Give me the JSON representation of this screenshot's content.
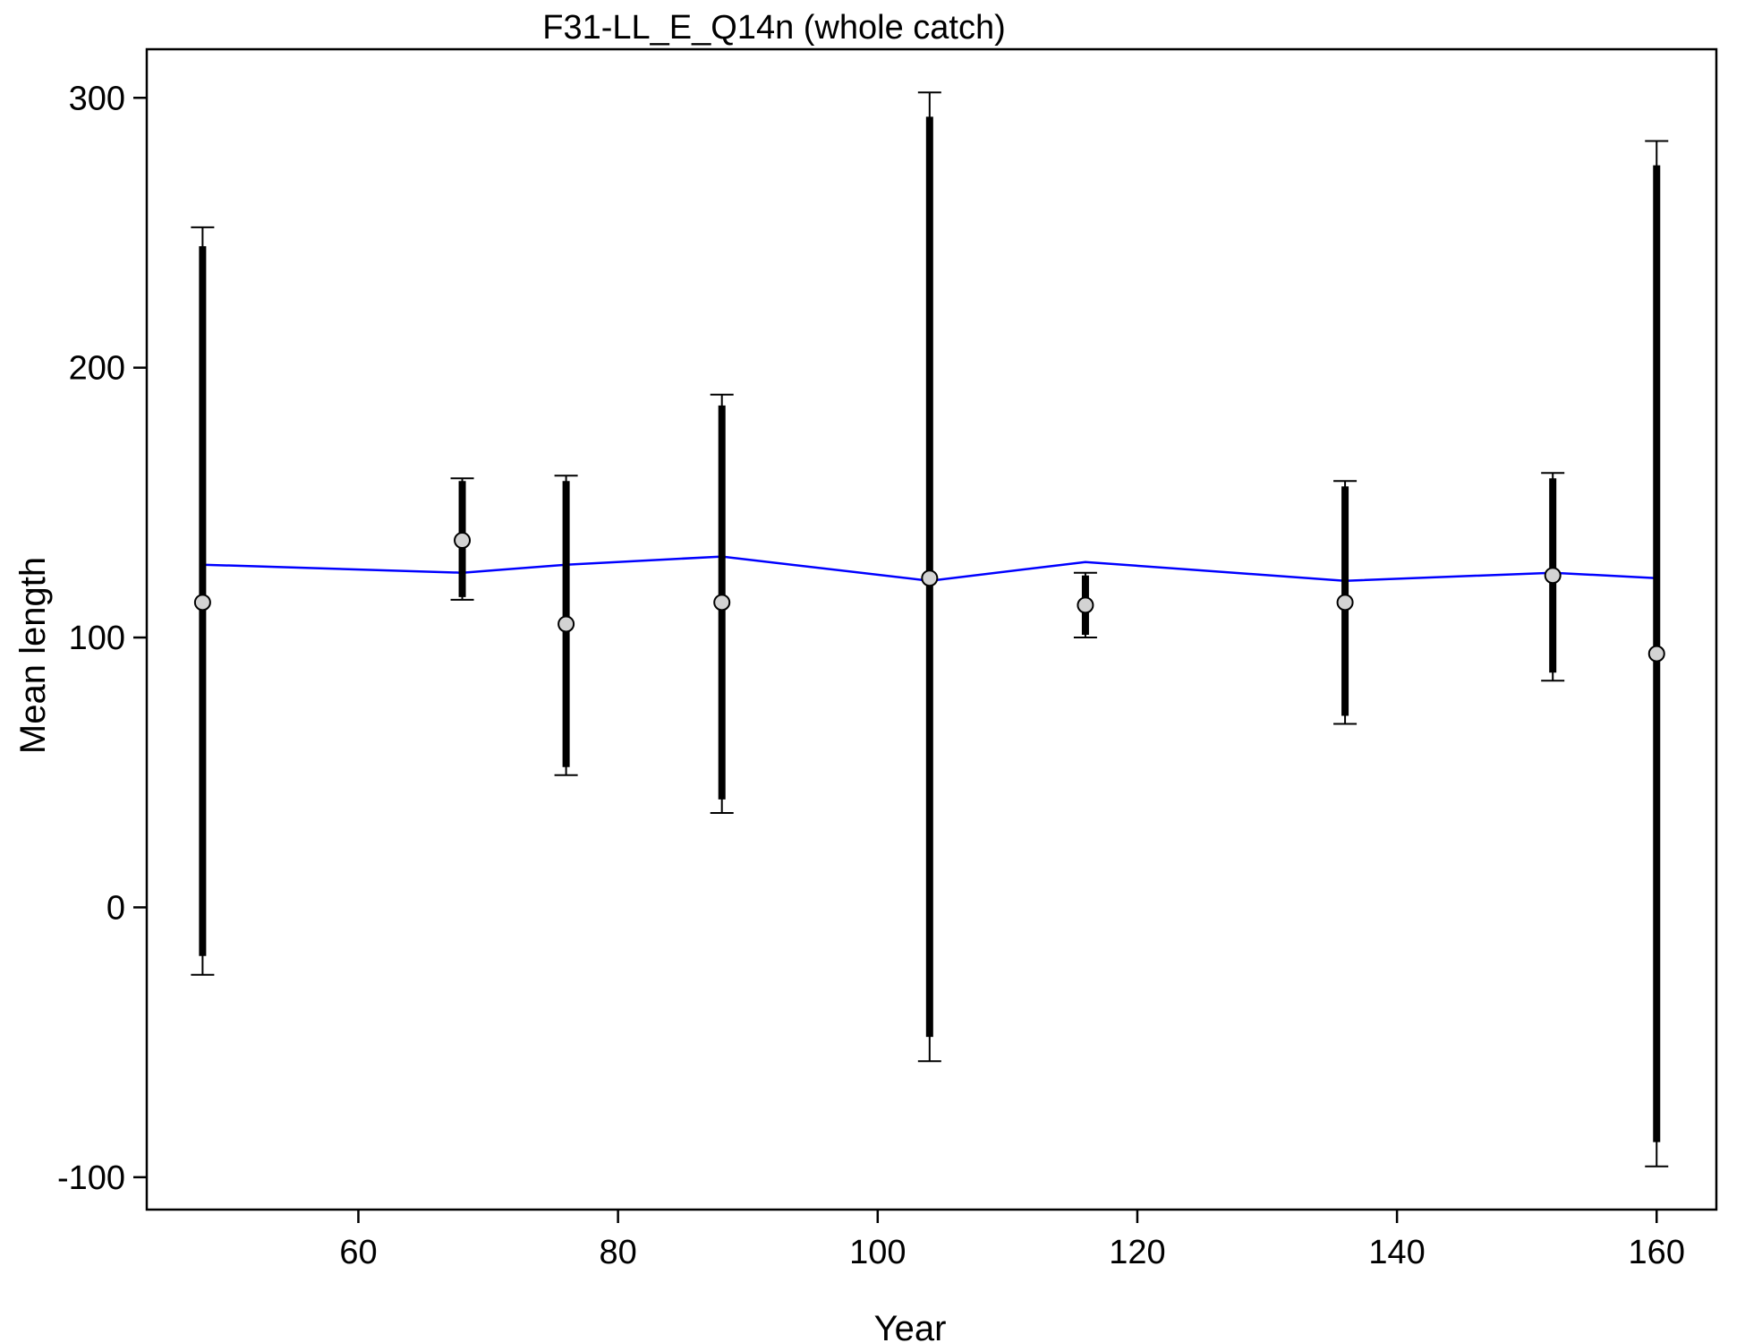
{
  "chart_data": {
    "type": "line",
    "title": "F31-LL_E_Q14n (whole catch)",
    "xlabel": "Year",
    "ylabel": "Mean length",
    "xlim": [
      43.7,
      164.6
    ],
    "ylim": [
      -112,
      318
    ],
    "xticks": [
      60,
      80,
      100,
      120,
      140,
      160
    ],
    "yticks": [
      -100,
      0,
      100,
      200,
      300
    ],
    "grid": false,
    "legend": "none",
    "series": [
      {
        "role": "observed mean with error bars",
        "x": [
          48,
          68,
          76,
          88,
          104,
          116,
          136,
          152,
          160
        ],
        "values": [
          113,
          136,
          105,
          113,
          122,
          112,
          113,
          123,
          94
        ],
        "inner_low": [
          -18,
          115,
          52,
          40,
          -48,
          101,
          71,
          87,
          -87
        ],
        "inner_high": [
          245,
          158,
          158,
          186,
          293,
          123,
          156,
          159,
          275
        ],
        "outer_low": [
          -25,
          114,
          49,
          35,
          -57,
          100,
          68,
          84,
          -96
        ],
        "outer_high": [
          252,
          159,
          160,
          190,
          302,
          124,
          158,
          161,
          284
        ],
        "marker_color": "#d3d3d3"
      },
      {
        "role": "expected mean",
        "x": [
          48,
          68,
          76,
          88,
          104,
          116,
          136,
          152,
          160
        ],
        "values": [
          127,
          124,
          127,
          130,
          121,
          128,
          121,
          124,
          122
        ],
        "color": "#0000ff"
      }
    ]
  }
}
